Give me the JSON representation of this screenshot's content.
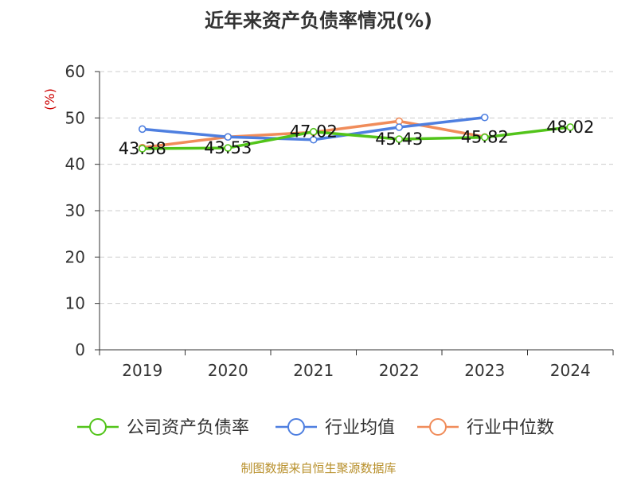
{
  "chart_data": {
    "type": "line",
    "title": "近年来资产负债率情况(%)",
    "ylabel": "(%)",
    "xlabel": "",
    "categories": [
      "2019",
      "2020",
      "2021",
      "2022",
      "2023",
      "2024"
    ],
    "ylim": [
      0,
      60
    ],
    "yticks": [
      "0",
      "10",
      "20",
      "30",
      "40",
      "50",
      "60"
    ],
    "grid": true,
    "legend_position": "bottom",
    "series": [
      {
        "name": "公司资产负债率",
        "color": "#52c41a",
        "values": [
          43.38,
          43.53,
          47.02,
          45.43,
          45.82,
          48.02
        ],
        "labels": [
          "43.38",
          "43.53",
          "47.02",
          "45.43",
          "45.82",
          "48.02"
        ]
      },
      {
        "name": "行业均值",
        "color": "#4e7fe0",
        "values": [
          47.6,
          45.9,
          45.3,
          48.0,
          50.1,
          null
        ]
      },
      {
        "name": "行业中位数",
        "color": "#f08c5a",
        "values": [
          43.6,
          45.9,
          46.9,
          49.3,
          45.9,
          null
        ]
      }
    ]
  },
  "footer": {
    "source": "制图数据来自恒生聚源数据库"
  }
}
